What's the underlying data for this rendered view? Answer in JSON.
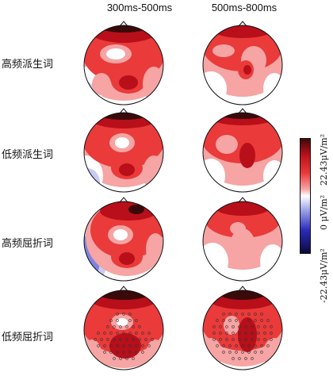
{
  "columns": [
    "300ms-500ms",
    "500ms-800ms"
  ],
  "rows": [
    "高频派生词",
    "低频派生词",
    "高频屈折词",
    "低频屈折词"
  ],
  "colorbar": {
    "max_label": "22.43μV/m²",
    "mid_label": "0 μV/m²",
    "min_label": "-22.43μV/m²",
    "colors": [
      "#3a0a0a",
      "#b80f1a",
      "#ea3a3a",
      "#f6a4a4",
      "#ffffff",
      "#a0a6e8",
      "#2a2ab8",
      "#0a0a3a"
    ]
  }
}
